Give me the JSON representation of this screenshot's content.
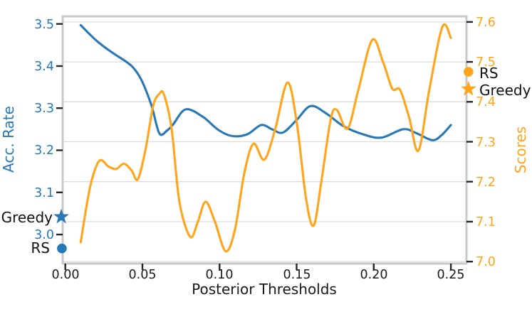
{
  "chart_data": {
    "type": "line",
    "title": "",
    "xlabel": "Posterior Thresholds",
    "ylabel_left": "Acc. Rate",
    "ylabel_right": "Scores",
    "grid": "on",
    "colors": {
      "acc_rate_line": "#2878B5",
      "scores_line": "#FFA41B",
      "grid_line": "#DCDCDC",
      "spine": "#C9C9C9",
      "tick_mark": "#262626",
      "black_text": "#1a1a1a"
    },
    "x_axis": {
      "min": -0.0017,
      "max": 0.2601,
      "ticks": [
        "0.00",
        "0.05",
        "0.10",
        "0.15",
        "0.20",
        "0.25"
      ],
      "tick_values": [
        0.0,
        0.05,
        0.1,
        0.15,
        0.2,
        0.25
      ]
    },
    "y_axis_left": {
      "label": "Acc. Rate",
      "min": 2.931,
      "max": 3.518,
      "ticks": [
        "3.5",
        "3.4",
        "3.3",
        "3.2",
        "3.1",
        "3.0"
      ],
      "tick_values": [
        3.5,
        3.4,
        3.3,
        3.2,
        3.1,
        3.0
      ]
    },
    "y_axis_right": {
      "label": "Scores",
      "min": 6.995,
      "max": 7.614,
      "ticks": [
        "7.6",
        "7.5",
        "7.4",
        "7.3",
        "7.2",
        "7.1",
        "7.0"
      ],
      "tick_values": [
        7.6,
        7.5,
        7.4,
        7.3,
        7.2,
        7.1,
        7.0
      ]
    },
    "series": [
      {
        "name": "Acc. Rate",
        "axis": "left",
        "color": "#2878B5",
        "x": [
          0.01,
          0.02,
          0.03,
          0.04,
          0.045,
          0.05,
          0.056,
          0.061,
          0.066,
          0.07,
          0.078,
          0.089,
          0.099,
          0.108,
          0.118,
          0.127,
          0.134,
          0.141,
          0.15,
          0.159,
          0.169,
          0.18,
          0.193,
          0.205,
          0.219,
          0.228,
          0.238,
          0.244,
          0.25
        ],
        "y": [
          3.497,
          3.461,
          3.433,
          3.409,
          3.392,
          3.362,
          3.305,
          3.24,
          3.247,
          3.262,
          3.297,
          3.28,
          3.249,
          3.234,
          3.238,
          3.26,
          3.25,
          3.242,
          3.272,
          3.305,
          3.288,
          3.258,
          3.238,
          3.23,
          3.25,
          3.24,
          3.224,
          3.236,
          3.26
        ]
      },
      {
        "name": "Scores",
        "axis": "right",
        "color": "#FFA41B",
        "x": [
          0.01,
          0.016,
          0.022,
          0.028,
          0.033,
          0.038,
          0.043,
          0.047,
          0.052,
          0.057,
          0.061,
          0.064,
          0.069,
          0.074,
          0.081,
          0.086,
          0.091,
          0.097,
          0.104,
          0.11,
          0.116,
          0.122,
          0.129,
          0.136,
          0.144,
          0.15,
          0.156,
          0.161,
          0.166,
          0.172,
          0.176,
          0.183,
          0.19,
          0.199,
          0.206,
          0.212,
          0.217,
          0.223,
          0.229,
          0.236,
          0.2445,
          0.25
        ],
        "y": [
          7.048,
          7.185,
          7.252,
          7.238,
          7.232,
          7.245,
          7.228,
          7.206,
          7.28,
          7.39,
          7.42,
          7.418,
          7.33,
          7.15,
          7.062,
          7.1,
          7.15,
          7.1,
          7.026,
          7.08,
          7.22,
          7.295,
          7.255,
          7.33,
          7.448,
          7.35,
          7.16,
          7.09,
          7.2,
          7.355,
          7.38,
          7.333,
          7.43,
          7.555,
          7.5,
          7.433,
          7.43,
          7.36,
          7.278,
          7.43,
          7.588,
          7.56
        ]
      }
    ],
    "annotations": [
      {
        "label": "Greedy",
        "marker": "star",
        "axis": "left",
        "x": -0.0026,
        "y": 3.042,
        "label_side": "left",
        "color": "#2878B5"
      },
      {
        "label": "RS",
        "marker": "circle",
        "axis": "left",
        "x": -0.0022,
        "y": 2.967,
        "label_side": "left",
        "color": "#2878B5"
      },
      {
        "label": "RS",
        "marker": "circle",
        "axis": "right",
        "x": 0.2614,
        "y": 7.475,
        "label_side": "right",
        "color": "#FFA41B"
      },
      {
        "label": "Greedy",
        "marker": "star",
        "axis": "right",
        "x": 0.2614,
        "y": 7.432,
        "label_side": "right",
        "color": "#FFA41B"
      }
    ]
  }
}
